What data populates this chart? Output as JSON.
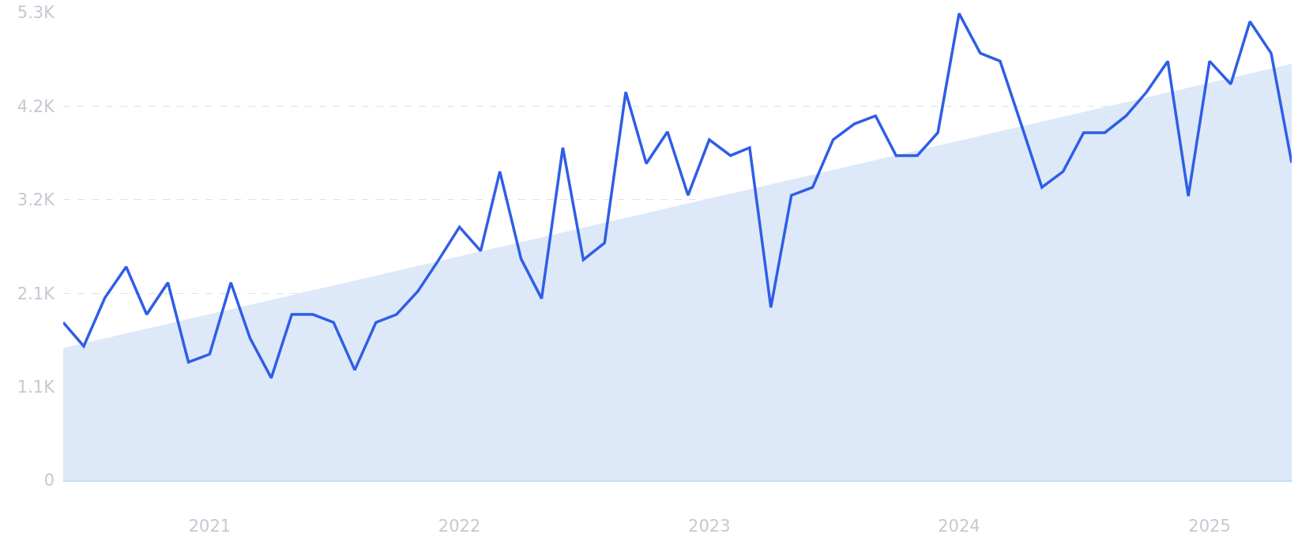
{
  "chart_data": {
    "type": "line",
    "x": [
      "2020-06",
      "2020-07",
      "2020-08",
      "2020-09",
      "2020-10",
      "2020-11",
      "2020-12",
      "2021-01",
      "2021-02",
      "2021-03",
      "2021-04",
      "2021-05",
      "2021-06",
      "2021-07",
      "2021-08",
      "2021-09",
      "2021-10",
      "2021-11",
      "2021-12",
      "2022-01",
      "2022-02",
      "2022-03",
      "2022-04",
      "2022-05",
      "2022-06",
      "2022-07",
      "2022-08",
      "2022-09",
      "2022-10",
      "2022-11",
      "2022-12",
      "2023-01",
      "2023-02",
      "2023-03",
      "2023-04",
      "2023-05",
      "2023-06",
      "2023-07",
      "2023-08",
      "2023-09",
      "2023-10",
      "2023-11",
      "2023-12",
      "2024-01",
      "2024-02",
      "2024-03",
      "2024-04",
      "2024-05",
      "2024-06",
      "2024-07",
      "2024-08",
      "2024-09",
      "2024-10",
      "2024-11",
      "2024-12",
      "2025-01",
      "2025-02",
      "2025-03",
      "2025-04",
      "2025-05"
    ],
    "series": [
      {
        "type": "area",
        "color": "#dde9f9",
        "x": [
          "2020-06",
          "2025-05"
        ],
        "values": [
          1500,
          4720
        ]
      },
      {
        "color": "#2f5ee6",
        "values": [
          1790,
          1520,
          2070,
          2420,
          1880,
          2240,
          1340,
          1430,
          2240,
          1610,
          1160,
          1880,
          1880,
          1790,
          1250,
          1790,
          1880,
          2140,
          2490,
          2870,
          2600,
          3500,
          2510,
          2060,
          3770,
          2500,
          2690,
          4400,
          3590,
          3950,
          3230,
          3860,
          3680,
          3770,
          1960,
          3230,
          3320,
          3860,
          4040,
          4130,
          3680,
          3680,
          3940,
          5290,
          4840,
          4750,
          4030,
          3320,
          3500,
          3940,
          3940,
          4130,
          4400,
          4750,
          3220,
          4750,
          4490,
          5200,
          4840,
          3600
        ]
      }
    ],
    "xlim": [
      "2020-06",
      "2025-05"
    ],
    "xticks": [
      "2021",
      "2022",
      "2023",
      "2024",
      "2025"
    ],
    "ylim": [
      0,
      5300
    ],
    "yticks": [
      0,
      {
        "value": 1060,
        "label": "1.1K"
      },
      {
        "value": 2120,
        "label": "2.1K"
      },
      {
        "value": 3180,
        "label": "3.2K"
      },
      {
        "value": 4240,
        "label": "4.2K"
      },
      {
        "value": 5300,
        "label": "5.3K"
      }
    ],
    "grid": "y",
    "legend": false,
    "marker": "none",
    "line_style": "solid"
  }
}
